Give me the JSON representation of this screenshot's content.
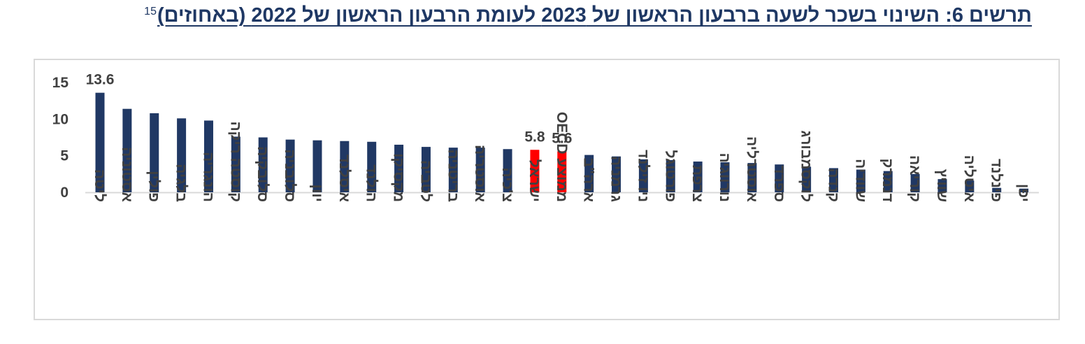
{
  "header": {
    "title": "תרשים 6: השינוי בשכר לשעה ברבעון הראשון של 2023 לעומת הרבעון הראשון של 2022 (באחוזים)",
    "footnote_ref": "15"
  },
  "colors": {
    "default_bar": "#203864",
    "highlight_bar": "#ff0000",
    "axis": "#d9d9d9",
    "title": "#1f3864"
  },
  "chart_data": {
    "type": "bar",
    "title": "תרשים 6: השינוי בשכר לשעה ברבעון הראשון של 2023 לעומת הרבעון הראשון של 2022 (באחוזים)",
    "xlabel": "",
    "ylabel": "",
    "ylim": [
      0,
      15
    ],
    "yticks": [
      0,
      5,
      10,
      15
    ],
    "grid": false,
    "legend": "none",
    "categories": [
      "ליטה",
      "אסטוניה",
      "פולין",
      "בלגיה",
      "הונגריה",
      "קוסטה ריקה",
      "סלובקיה",
      "סלובניה",
      "יוון",
      "איסלנד",
      "הולנד",
      "מקסיקו",
      "לטביה",
      "בריטניה",
      "אוסטריה",
      "צ'כיה",
      "ישראל",
      "ממוצע OECD",
      "ארה\"ב",
      "גרמניה",
      "ניו זילנד",
      "פורטוגל",
      "צרפת",
      "נורווגיה",
      "אוסטרליה",
      "ספרד",
      "לוקסמבורג",
      "קנדה",
      "שוודיה",
      "דנמרק",
      "קוריאה",
      "שוויץ",
      "איטליה",
      "פינלנד",
      "יפן"
    ],
    "values": [
      13.6,
      11.4,
      10.8,
      10.1,
      9.8,
      7.6,
      7.5,
      7.2,
      7.1,
      7.0,
      6.9,
      6.5,
      6.2,
      6.1,
      6.1,
      5.9,
      5.8,
      5.6,
      5.1,
      4.9,
      4.5,
      4.4,
      4.2,
      4.1,
      4.0,
      3.8,
      3.5,
      3.3,
      3.1,
      2.9,
      2.5,
      1.8,
      1.6,
      0.6,
      0.5
    ],
    "highlighted": [
      "ישראל",
      "ממוצע OECD"
    ],
    "data_labels": [
      {
        "category": "ליטה",
        "text": "13.6"
      },
      {
        "category": "ישראל",
        "text": "5.8"
      },
      {
        "category": "ממוצע OECD",
        "text": "5.6"
      }
    ]
  }
}
